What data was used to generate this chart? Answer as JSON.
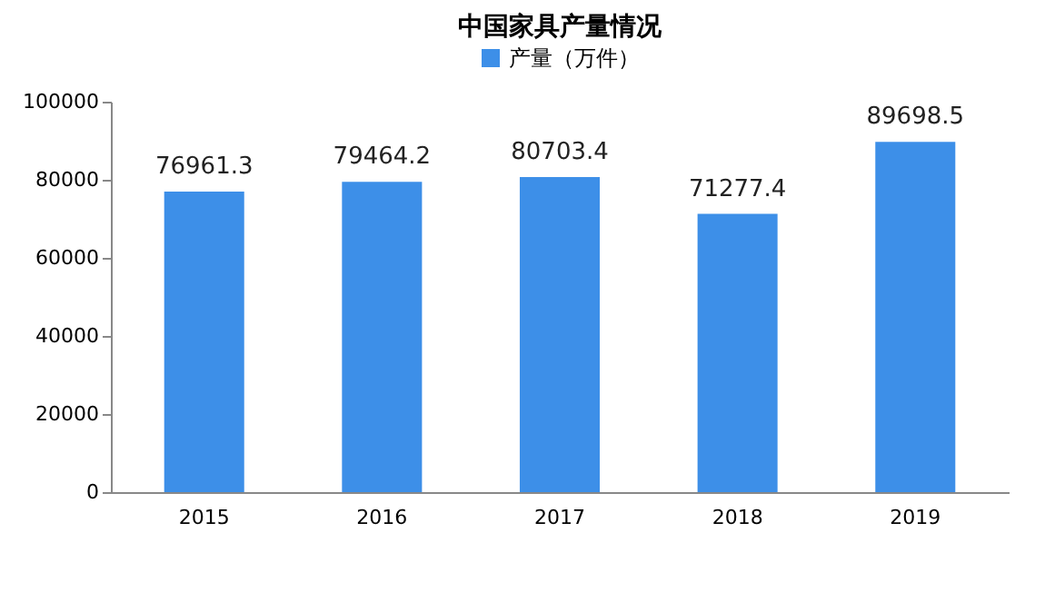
{
  "chart_data": {
    "type": "bar",
    "title": "中国家具产量情况",
    "categories": [
      "2015",
      "2016",
      "2017",
      "2018",
      "2019"
    ],
    "series": [
      {
        "name": "产量（万件）",
        "color": "#3d8fe8",
        "values": [
          76961.3,
          79464.2,
          80703.4,
          71277.4,
          89698.5
        ]
      }
    ],
    "ylim": [
      0,
      100000
    ],
    "yticks": [
      0,
      20000,
      40000,
      60000,
      80000,
      100000
    ],
    "grid": false,
    "legend": "top",
    "data_labels": true
  }
}
